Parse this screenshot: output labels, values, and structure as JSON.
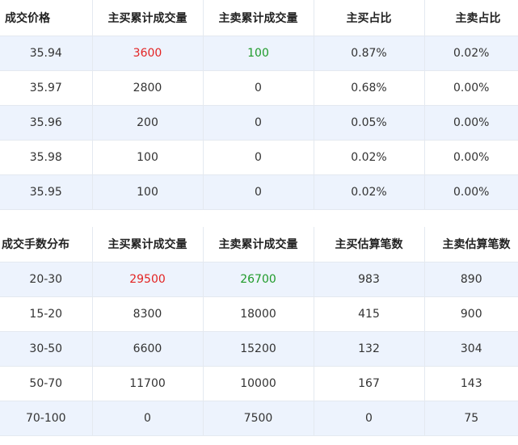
{
  "table1": {
    "headers": [
      "成交价格",
      "主买累计成交量",
      "主卖累计成交量",
      "主买占比",
      "主卖占比"
    ],
    "rows": [
      [
        "35.94",
        "3600",
        "100",
        "0.87%",
        "0.02%"
      ],
      [
        "35.97",
        "2800",
        "0",
        "0.68%",
        "0.00%"
      ],
      [
        "35.96",
        "200",
        "0",
        "0.05%",
        "0.00%"
      ],
      [
        "35.98",
        "100",
        "0",
        "0.02%",
        "0.00%"
      ],
      [
        "35.95",
        "100",
        "0",
        "0.02%",
        "0.00%"
      ]
    ]
  },
  "table2": {
    "headers": [
      "成交手数分布",
      "主买累计成交量",
      "主卖累计成交量",
      "主买估算笔数",
      "主卖估算笔数"
    ],
    "rows": [
      [
        "20-30",
        "29500",
        "26700",
        "983",
        "890"
      ],
      [
        "15-20",
        "8300",
        "18000",
        "415",
        "900"
      ],
      [
        "30-50",
        "6600",
        "15200",
        "132",
        "304"
      ],
      [
        "50-70",
        "11700",
        "10000",
        "167",
        "143"
      ],
      [
        "70-100",
        "0",
        "7500",
        "0",
        "75"
      ]
    ]
  },
  "colors": {
    "buy_highlight": "#e32323",
    "sell_highlight": "#1f9b2a",
    "alt_row_bg": "#edf3fd"
  }
}
